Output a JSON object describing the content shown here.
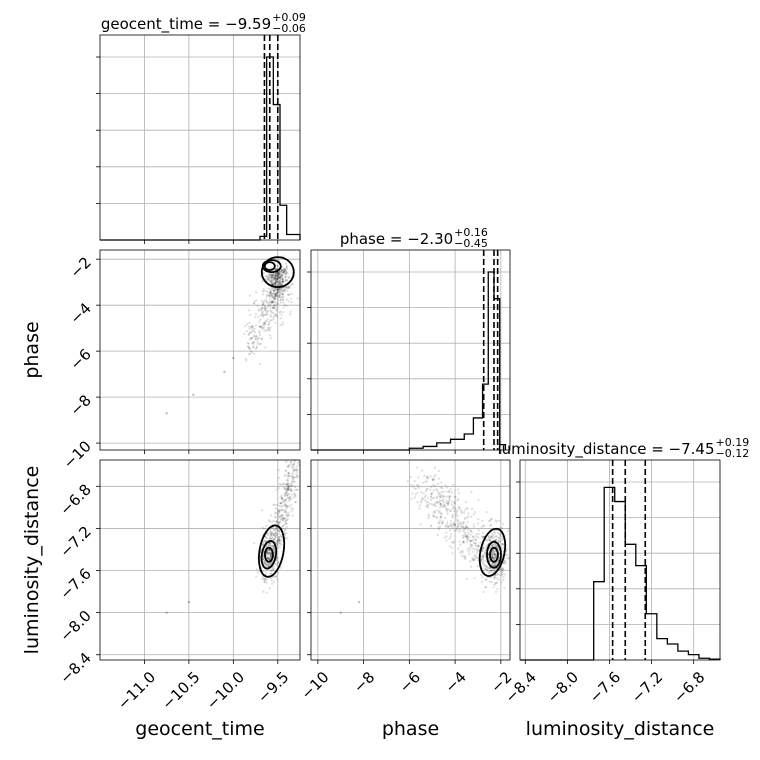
{
  "chart_data": {
    "type": "scatter",
    "subtype": "corner-plot",
    "parameters": [
      "geocent_time",
      "phase",
      "luminosity_distance"
    ],
    "axis_labels": {
      "x": [
        "geocent_time",
        "phase",
        "luminosity_distance"
      ],
      "y": [
        "phase",
        "luminosity_distance"
      ]
    },
    "ranges": {
      "geocent_time": [
        -11.5,
        -9.25
      ],
      "phase": [
        -10.3,
        -1.6
      ],
      "luminosity_distance": [
        -8.45,
        -6.55
      ]
    },
    "ticks": {
      "geocent_time": {
        "values": [
          -11.0,
          -10.5,
          -10.0,
          -9.5
        ],
        "labels": [
          "−11.0",
          "−10.5",
          "−10.0",
          "−9.5"
        ]
      },
      "phase": {
        "values": [
          -10,
          -8,
          -6,
          -4,
          -2
        ],
        "labels": [
          "−10",
          "−8",
          "−6",
          "−4",
          "−2"
        ]
      },
      "luminosity_distance": {
        "values": [
          -8.4,
          -8.0,
          -7.6,
          -7.2,
          -6.8
        ],
        "labels": [
          "−8.4",
          "−8.0",
          "−7.6",
          "−7.2",
          "−6.8"
        ]
      }
    },
    "titles": [
      {
        "name": "geocent_time",
        "prefix": "geocent_time = −9.59",
        "plus": "+0.09",
        "minus": "−0.06"
      },
      {
        "name": "phase",
        "prefix": "phase = −2.30",
        "plus": "+0.16",
        "minus": "−0.45"
      },
      {
        "name": "luminosity_distance",
        "prefix": "luminosity_distance = −7.45",
        "plus": "+0.19",
        "minus": "−0.12"
      }
    ],
    "histograms": {
      "geocent_time": {
        "edges": [
          -11.5,
          -9.7,
          -9.625,
          -9.55,
          -9.475,
          -9.4,
          -9.25
        ],
        "counts": [
          0,
          0.02,
          1.0,
          0.74,
          0.19,
          0.03
        ],
        "quantiles": [
          -9.65,
          -9.59,
          -9.5
        ]
      },
      "phase": {
        "edges": [
          -10.3,
          -6.0,
          -5.4,
          -4.8,
          -4.2,
          -3.6,
          -3.2,
          -2.8,
          -2.55,
          -2.3,
          -2.05,
          -1.8
        ],
        "counts": [
          0,
          0.01,
          0.02,
          0.04,
          0.06,
          0.09,
          0.18,
          0.37,
          1.0,
          0.85,
          0.03
        ],
        "quantiles": [
          -2.75,
          -2.3,
          -2.14
        ]
      },
      "luminosity_distance": {
        "edges": [
          -8.45,
          -7.75,
          -7.65,
          -7.55,
          -7.45,
          -7.35,
          -7.25,
          -7.15,
          -7.05,
          -6.95,
          -6.85,
          -6.75,
          -6.65,
          -6.55
        ],
        "counts": [
          0,
          0.44,
          0.97,
          0.89,
          0.65,
          0.53,
          0.26,
          0.12,
          0.09,
          0.05,
          0.03,
          0.01,
          0.005
        ],
        "quantiles": [
          -7.57,
          -7.45,
          -7.26
        ]
      }
    },
    "scatter": {
      "geocent_time_vs_phase": {
        "x_param": "geocent_time",
        "y_param": "phase",
        "center": [
          -9.59,
          -2.3
        ],
        "outliers": [
          [
            -10.75,
            -8.7
          ],
          [
            -10.45,
            -7.9
          ],
          [
            -10.1,
            -6.9
          ],
          [
            -10.0,
            -6.3
          ]
        ]
      },
      "geocent_time_vs_luminosity_distance": {
        "x_param": "geocent_time",
        "y_param": "luminosity_distance",
        "center": [
          -9.6,
          -7.45
        ],
        "outliers": [
          [
            -10.75,
            -8.0
          ],
          [
            -10.5,
            -7.9
          ]
        ]
      },
      "phase_vs_luminosity_distance": {
        "x_param": "phase",
        "y_param": "luminosity_distance",
        "center": [
          -2.3,
          -7.45
        ],
        "outliers": [
          [
            -9.0,
            -8.0
          ],
          [
            -8.2,
            -7.9
          ]
        ]
      }
    },
    "grid": true
  }
}
